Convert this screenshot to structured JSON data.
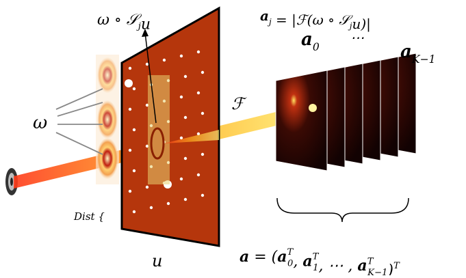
{
  "labels": {
    "window_shift": [
      {
        "text": "ω ∘ 𝒮"
      },
      {
        "sub": "j"
      },
      {
        "text": "u"
      }
    ],
    "amplitude": [
      {
        "bold": "a"
      },
      {
        "sub": "j"
      },
      {
        "text": " = |ℱ(ω ∘ 𝒮"
      },
      {
        "sub": "j"
      },
      {
        "text": "u)|"
      }
    ],
    "first_pattern": [
      {
        "bold": "a"
      },
      {
        "sub": "0"
      }
    ],
    "ellipsis": [
      {
        "text": "⋯"
      }
    ],
    "last_pattern": [
      {
        "bold": "a"
      },
      {
        "sub": "K−1"
      }
    ],
    "transform": [
      {
        "text": "ℱ"
      }
    ],
    "probe": [
      {
        "text": "ω"
      }
    ],
    "distance": [
      {
        "text": "Dist"
      },
      {
        "text": " {"
      }
    ],
    "object": [
      {
        "text": "u"
      }
    ],
    "stacked": [
      {
        "bold": "a"
      },
      {
        "text": " = ("
      },
      {
        "bold": "a"
      },
      {
        "sub": "0",
        "sup": "T"
      },
      {
        "text": ", "
      },
      {
        "bold": "a"
      },
      {
        "sub": "1",
        "sup": "T"
      },
      {
        "text": ", ⋯ , "
      },
      {
        "bold": "a"
      },
      {
        "sub": "K−1",
        "sup": "T"
      },
      {
        "text": ")"
      },
      {
        "sup": "T"
      }
    ]
  }
}
